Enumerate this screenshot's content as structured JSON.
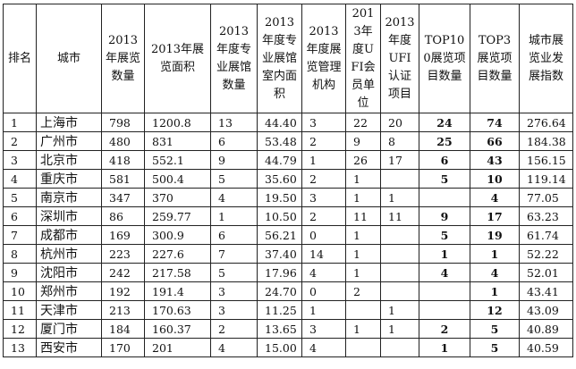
{
  "table": {
    "headers": [
      "排名",
      "城市",
      "2013年展览数量",
      "2013年展览面积",
      "2013年度专业展馆数量",
      "2013年度专业展馆室内面积",
      "2013年度展览管理机构",
      "2013年度UFI会员单位",
      "2013年度UFI认证项目",
      "TOP100展览项目数量",
      "TOP3展览项目数量",
      "城市展览业发展指数"
    ],
    "rows": [
      [
        "1",
        "上海市",
        "798",
        "1200.8",
        "13",
        "44.40",
        "3",
        "22",
        "20",
        "24",
        "74",
        "276.64"
      ],
      [
        "2",
        "广州市",
        "480",
        "831",
        "6",
        "53.48",
        "2",
        "9",
        "8",
        "25",
        "66",
        "184.38"
      ],
      [
        "3",
        "北京市",
        "418",
        "552.1",
        "9",
        "44.79",
        "1",
        "26",
        "17",
        "6",
        "43",
        "156.15"
      ],
      [
        "4",
        "重庆市",
        "581",
        "500.4",
        "5",
        "35.60",
        "2",
        "1",
        "",
        "5",
        "10",
        "119.14"
      ],
      [
        "5",
        "南京市",
        "347",
        "370",
        "4",
        "19.50",
        "3",
        "1",
        "1",
        "",
        "4",
        "77.05"
      ],
      [
        "6",
        "深圳市",
        "86",
        "259.77",
        "1",
        "10.50",
        "2",
        "11",
        "11",
        "9",
        "17",
        "63.23"
      ],
      [
        "7",
        "成都市",
        "169",
        "300.9",
        "6",
        "56.21",
        "0",
        "1",
        "",
        "5",
        "19",
        "61.74"
      ],
      [
        "8",
        "杭州市",
        "223",
        "227.6",
        "7",
        "37.40",
        "14",
        "1",
        "",
        "1",
        "1",
        "52.22"
      ],
      [
        "9",
        "沈阳市",
        "242",
        "217.58",
        "5",
        "17.96",
        "4",
        "1",
        "",
        "4",
        "4",
        "52.01"
      ],
      [
        "10",
        "郑州市",
        "192",
        "191.4",
        "3",
        "24.70",
        "0",
        "2",
        "",
        "",
        "1",
        "43.41"
      ],
      [
        "11",
        "天津市",
        "213",
        "170.63",
        "3",
        "11.25",
        "1",
        "",
        "1",
        "",
        "12",
        "43.09"
      ],
      [
        "12",
        "厦门市",
        "184",
        "160.37",
        "2",
        "13.65",
        "3",
        "1",
        "1",
        "2",
        "5",
        "40.89"
      ],
      [
        "13",
        "西安市",
        "170",
        "201",
        "4",
        "15.00",
        "4",
        "",
        "",
        "1",
        "5",
        "40.59"
      ]
    ]
  }
}
